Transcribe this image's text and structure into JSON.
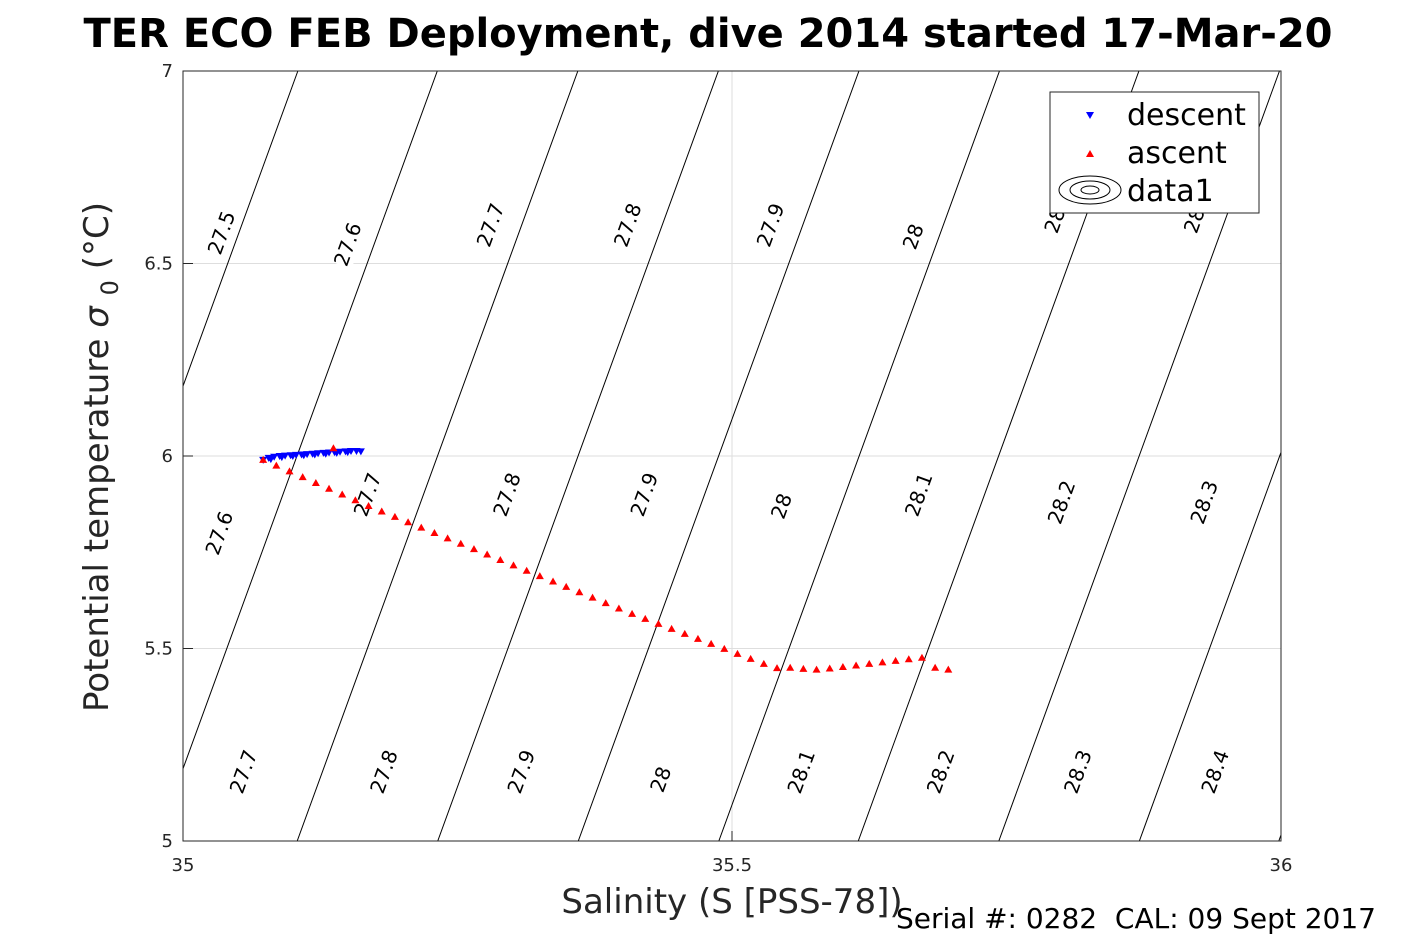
{
  "chart_data": {
    "type": "scatter",
    "title": "TER ECO FEB Deployment, dive 2014 started 17-Mar-20",
    "xlabel": "Salinity (S [PSS-78])",
    "ylabel": "Potential temperature",
    "ylabel_symbol": "σ",
    "ylabel_subscript": "0",
    "ylabel_unit": "(°C)",
    "xlim": [
      35,
      36
    ],
    "ylim": [
      5,
      7
    ],
    "x_ticks": [
      35,
      35.5,
      36
    ],
    "y_ticks": [
      5,
      5.5,
      6,
      6.5,
      7
    ],
    "grid": true,
    "legend_position": "top-right",
    "legend": [
      "descent",
      "ascent",
      "data1"
    ],
    "footer": "Serial #: 0282  CAL: 09 Sept 2017",
    "series": [
      {
        "name": "descent",
        "marker": "triangle-down",
        "color": "#0000ff",
        "x": [
          35.073,
          35.078,
          35.083,
          35.088,
          35.093,
          35.098,
          35.103,
          35.108,
          35.113,
          35.118,
          35.123,
          35.128,
          35.133,
          35.138,
          35.143,
          35.148,
          35.153,
          35.158,
          35.162,
          35.08,
          35.09,
          35.1,
          35.11,
          35.12,
          35.13,
          35.14,
          35.15
        ],
        "y": [
          5.99,
          5.995,
          5.998,
          6.0,
          6.001,
          6.002,
          6.003,
          6.004,
          6.005,
          6.006,
          6.007,
          6.008,
          6.009,
          6.01,
          6.011,
          6.012,
          6.013,
          6.013,
          6.012,
          5.992,
          5.997,
          6.0,
          6.002,
          6.004,
          6.006,
          6.008,
          6.01
        ]
      },
      {
        "name": "ascent",
        "marker": "triangle-up",
        "color": "#ff0000",
        "x": [
          35.073,
          35.085,
          35.097,
          35.109,
          35.121,
          35.133,
          35.137,
          35.145,
          35.157,
          35.169,
          35.181,
          35.193,
          35.205,
          35.217,
          35.229,
          35.241,
          35.253,
          35.265,
          35.277,
          35.289,
          35.301,
          35.313,
          35.325,
          35.337,
          35.349,
          35.361,
          35.373,
          35.385,
          35.397,
          35.409,
          35.421,
          35.433,
          35.445,
          35.457,
          35.469,
          35.481,
          35.493,
          35.505,
          35.517,
          35.529,
          35.541,
          35.553,
          35.565,
          35.577,
          35.589,
          35.601,
          35.613,
          35.625,
          35.637,
          35.649,
          35.661,
          35.673,
          35.685,
          35.697
        ],
        "y": [
          5.99,
          5.975,
          5.96,
          5.945,
          5.93,
          5.915,
          6.02,
          5.9,
          5.885,
          5.87,
          5.856,
          5.842,
          5.828,
          5.814,
          5.8,
          5.786,
          5.772,
          5.758,
          5.744,
          5.73,
          5.716,
          5.702,
          5.688,
          5.674,
          5.66,
          5.646,
          5.632,
          5.618,
          5.604,
          5.59,
          5.577,
          5.564,
          5.551,
          5.538,
          5.525,
          5.512,
          5.499,
          5.486,
          5.473,
          5.46,
          5.449,
          5.45,
          5.447,
          5.445,
          5.448,
          5.452,
          5.456,
          5.46,
          5.464,
          5.468,
          5.472,
          5.476,
          5.45,
          5.445
        ]
      }
    ],
    "contours": [
      {
        "label": "27.5",
        "x_at_5": 34.849,
        "label_pos": [
          [
            35.035,
            6.58
          ]
        ]
      },
      {
        "label": "27.6",
        "x_at_5": 34.976,
        "label_pos": [
          [
            35.15,
            6.55
          ],
          [
            35.033,
            5.8
          ]
        ]
      },
      {
        "label": "27.7",
        "x_at_5": 35.104,
        "label_pos": [
          [
            35.28,
            6.6
          ],
          [
            35.168,
            5.9
          ],
          [
            35.055,
            5.18
          ]
        ]
      },
      {
        "label": "27.8",
        "x_at_5": 35.232,
        "label_pos": [
          [
            35.405,
            6.6
          ],
          [
            35.295,
            5.9
          ],
          [
            35.183,
            5.18
          ]
        ]
      },
      {
        "label": "27.9",
        "x_at_5": 35.36,
        "label_pos": [
          [
            35.535,
            6.6
          ],
          [
            35.42,
            5.9
          ],
          [
            35.308,
            5.18
          ]
        ]
      },
      {
        "label": "28",
        "x_at_5": 35.488,
        "label_pos": [
          [
            35.665,
            6.57
          ],
          [
            35.545,
            5.87
          ],
          [
            35.435,
            5.16
          ]
        ]
      },
      {
        "label": "28.1",
        "x_at_5": 35.615,
        "label_pos": [
          [
            35.67,
            5.9
          ],
          [
            35.563,
            5.18
          ]
        ]
      },
      {
        "label": "28.2",
        "x_at_5": 35.743,
        "label_pos": [
          [
            35.8,
            5.88
          ],
          [
            35.69,
            5.18
          ]
        ]
      },
      {
        "label": "28.3",
        "x_at_5": 35.871,
        "label_pos": [
          [
            35.93,
            5.88
          ],
          [
            35.815,
            5.18
          ]
        ]
      },
      {
        "label": "28.4",
        "x_at_5": 35.998,
        "label_pos": [
          [
            35.94,
            5.18
          ]
        ]
      }
    ],
    "contour_clipped_labels": [
      {
        "label": "28.",
        "pos": [
          35.795,
          6.62
        ]
      },
      {
        "label": "28.",
        "pos": [
          35.922,
          6.62
        ]
      }
    ]
  }
}
